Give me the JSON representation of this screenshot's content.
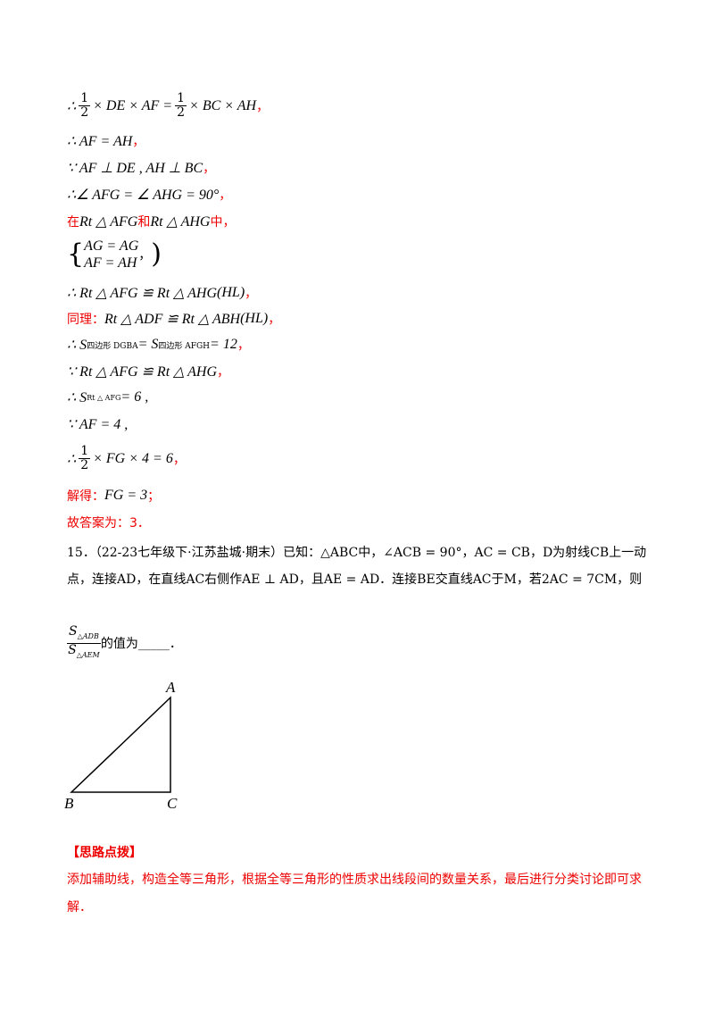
{
  "lines": [
    [
      "∴",
      "1",
      "2",
      "× DE × AF =",
      "1",
      "2",
      "× BC × AH",
      "，"
    ],
    [
      "∴ AF = AH",
      "，"
    ],
    [
      "∵ AF ⊥ DE , AH ⊥ BC",
      "，"
    ],
    [
      "∴∠ AFG = ∠ AHG = 90°",
      "，"
    ],
    [
      "在",
      "Rt △ AFG",
      "和",
      "Rt △ AHG",
      "中，"
    ],
    [
      "AG = AG",
      "AF = AH",
      "，"
    ],
    [
      "∴ Rt △ AFG ≌ Rt △ AHG",
      "(HL)",
      "，"
    ],
    [
      "同理：",
      "Rt △ ADF ≌ Rt △ ABH",
      "(HL)",
      "，"
    ],
    [
      "∴ S",
      "四边形 DGBA",
      "= S",
      "四边形 AFGH",
      "= 12",
      "，"
    ],
    [
      "∵ Rt △ AFG ≌ Rt △ AHG",
      "，"
    ],
    [
      "∴ S",
      "Rt △ AFG",
      "= 6 ,"
    ],
    [
      "∵ AF = 4 ,"
    ],
    [
      "∴",
      "1",
      "2",
      "× FG × 4 = 6",
      "，"
    ],
    [
      "解得：",
      "FG = 3",
      "；"
    ],
    [
      "故答案为：3．"
    ]
  ],
  "problem": {
    "lines": [
      "15．（22-23七年级下·江苏盐城·期末）已知：△ABC中，∠ACB = 90°，AC = CB，D为射线CB上一动",
      "点，连接AD，在直线AC右侧作AE ⊥ AD，且AE = AD．连接BE交直线AC于M，若2AC = 7CM，则"
    ],
    "fraction": [
      "S",
      "△ADB",
      "S",
      "△AEM"
    ],
    "tail": "的值为_____．"
  },
  "figure": {
    "labels": [
      "A",
      "B",
      "C"
    ]
  },
  "hint": {
    "title": "【思路点拨】",
    "lines": [
      "添加辅助线，构造全等三角形，根据全等三角形的性质求出线段间的数量关系，最后进行分类讨论即可求",
      "解．"
    ]
  }
}
